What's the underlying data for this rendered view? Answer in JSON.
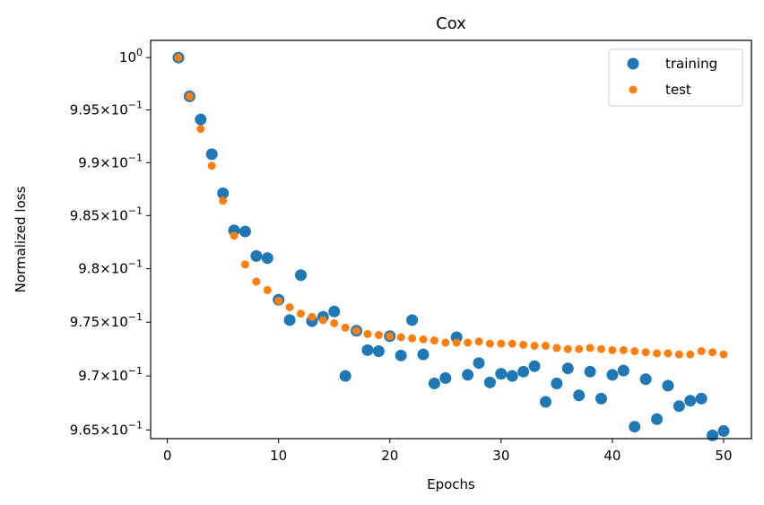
{
  "chart_data": {
    "type": "scatter",
    "title": "Cox",
    "xlabel": "Epochs",
    "ylabel": "Normalized loss",
    "yscale": "log",
    "xlim": [
      -1.5,
      52.5
    ],
    "ylim": [
      0.9642,
      1.00165
    ],
    "xticks": [
      0,
      10,
      20,
      30,
      40,
      50
    ],
    "xtick_labels": [
      "0",
      "10",
      "20",
      "30",
      "40",
      "50"
    ],
    "yticks": [
      {
        "value": 1.0,
        "mant": "10",
        "exp": "0"
      },
      {
        "value": 0.995,
        "mant": "9.95×10",
        "exp": "−1"
      },
      {
        "value": 0.99,
        "mant": "9.9×10",
        "exp": "−1"
      },
      {
        "value": 0.985,
        "mant": "9.85×10",
        "exp": "−1"
      },
      {
        "value": 0.98,
        "mant": "9.8×10",
        "exp": "−1"
      },
      {
        "value": 0.975,
        "mant": "9.75×10",
        "exp": "−1"
      },
      {
        "value": 0.97,
        "mant": "9.7×10",
        "exp": "−1"
      },
      {
        "value": 0.965,
        "mant": "9.65×10",
        "exp": "−1"
      }
    ],
    "legend_position": "top-right",
    "series": [
      {
        "name": "training",
        "color": "#1f77b4",
        "marker": "large-circle",
        "x": [
          1,
          2,
          3,
          4,
          5,
          6,
          7,
          8,
          9,
          10,
          11,
          12,
          13,
          14,
          15,
          16,
          17,
          18,
          19,
          20,
          21,
          22,
          23,
          24,
          25,
          26,
          27,
          28,
          29,
          30,
          31,
          32,
          33,
          34,
          35,
          36,
          37,
          38,
          39,
          40,
          41,
          42,
          43,
          44,
          45,
          46,
          47,
          48,
          49,
          50
        ],
        "y": [
          1.0,
          0.9963,
          0.9941,
          0.9908,
          0.9871,
          0.9836,
          0.9835,
          0.9812,
          0.981,
          0.9771,
          0.9752,
          0.9794,
          0.9751,
          0.9755,
          0.976,
          0.97,
          0.9742,
          0.9724,
          0.9723,
          0.9737,
          0.9719,
          0.9752,
          0.972,
          0.9693,
          0.9698,
          0.9736,
          0.9701,
          0.9712,
          0.9694,
          0.9702,
          0.97,
          0.9704,
          0.9709,
          0.9676,
          0.9693,
          0.9707,
          0.9682,
          0.9704,
          0.9679,
          0.9701,
          0.9705,
          0.9653,
          0.9697,
          0.966,
          0.9691,
          0.9672,
          0.9677,
          0.9679,
          0.9645,
          0.9649
        ]
      },
      {
        "name": "test",
        "color": "#ff7f0e",
        "marker": "small-circle",
        "x": [
          1,
          2,
          3,
          4,
          5,
          6,
          7,
          8,
          9,
          10,
          11,
          12,
          13,
          14,
          15,
          16,
          17,
          18,
          19,
          20,
          21,
          22,
          23,
          24,
          25,
          26,
          27,
          28,
          29,
          30,
          31,
          32,
          33,
          34,
          35,
          36,
          37,
          38,
          39,
          40,
          41,
          42,
          43,
          44,
          45,
          46,
          47,
          48,
          49,
          50
        ],
        "y": [
          1.0,
          0.9963,
          0.9932,
          0.9897,
          0.9864,
          0.9831,
          0.9804,
          0.9788,
          0.978,
          0.977,
          0.9764,
          0.9758,
          0.9755,
          0.9752,
          0.9749,
          0.9745,
          0.9742,
          0.9739,
          0.9738,
          0.9737,
          0.9736,
          0.9735,
          0.9734,
          0.9733,
          0.9731,
          0.9731,
          0.9731,
          0.9732,
          0.973,
          0.973,
          0.973,
          0.9729,
          0.9728,
          0.9728,
          0.9726,
          0.9725,
          0.9725,
          0.9726,
          0.9725,
          0.9724,
          0.9724,
          0.9723,
          0.9722,
          0.9721,
          0.9721,
          0.972,
          0.972,
          0.9723,
          0.9722,
          0.972
        ]
      }
    ]
  }
}
